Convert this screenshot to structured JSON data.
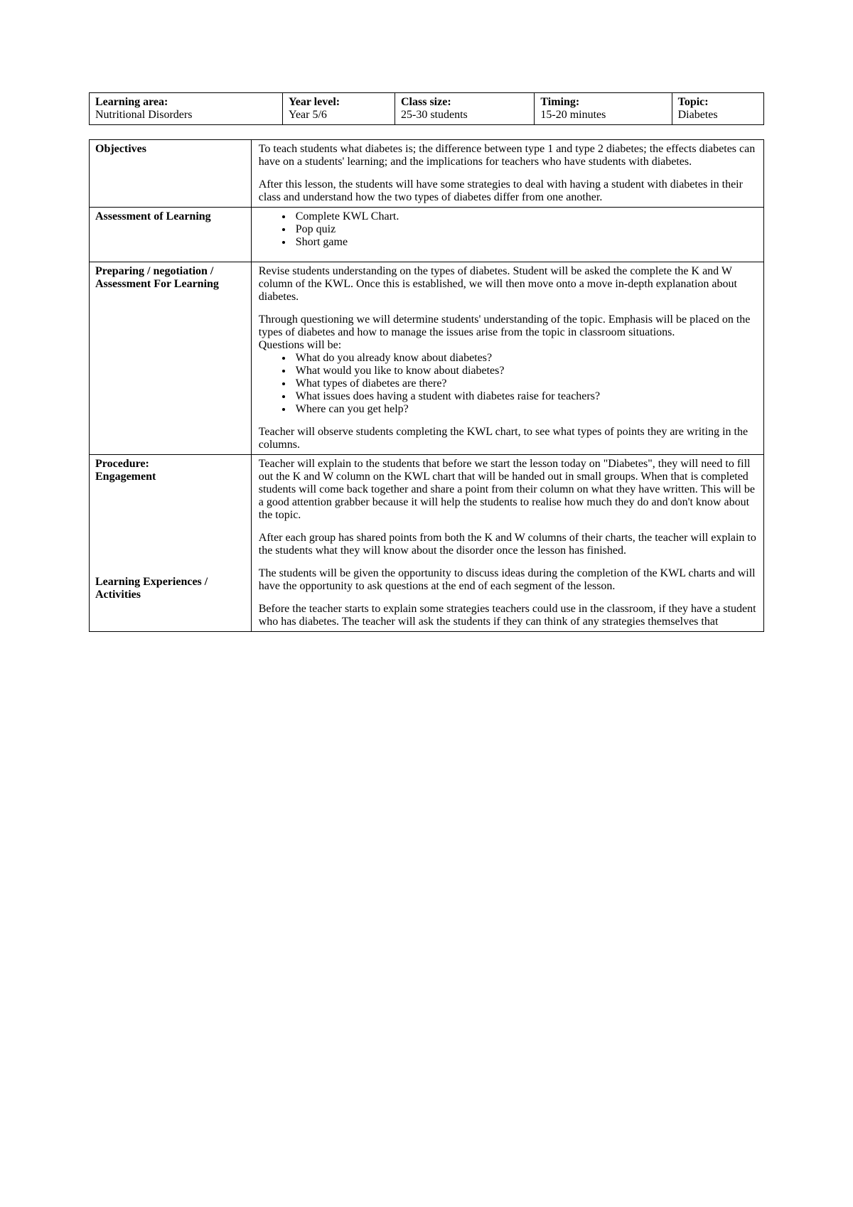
{
  "header": {
    "learning_area": {
      "label": "Learning area:",
      "value": "Nutritional Disorders"
    },
    "year_level": {
      "label": "Year level:",
      "value": "Year 5/6"
    },
    "class_size": {
      "label": "Class size:",
      "value": "25-30 students"
    },
    "timing": {
      "label": "Timing:",
      "value": "15-20 minutes"
    },
    "topic": {
      "label": "Topic:",
      "value": "Diabetes"
    }
  },
  "rows": {
    "objectives": {
      "label": "Objectives",
      "p1": "To teach students what diabetes is; the difference between type 1 and type 2 diabetes; the effects diabetes can have on a students' learning; and the implications for teachers who have students with diabetes.",
      "p2": "After this lesson, the students will have some strategies to deal with having a student with diabetes in their class and understand how the two types of diabetes differ from one another."
    },
    "assessment_of_learning": {
      "label": "Assessment of Learning",
      "items": {
        "0": "Complete KWL Chart.",
        "1": "Pop quiz",
        "2": "Short game"
      }
    },
    "preparing": {
      "label": "Preparing / negotiation / Assessment For Learning",
      "p1": "Revise students understanding on the types of diabetes. Student will be asked the complete the K and W column of the KWL. Once this is established, we will then move onto a move in-depth explanation about diabetes.",
      "p2": "Through questioning we will determine students' understanding of the topic. Emphasis will be placed on the types of diabetes and how to manage the issues arise from the topic in classroom situations.",
      "p3": "Questions will be:",
      "questions": {
        "0": "What do you already know about diabetes?",
        "1": "What would you like to know about diabetes?",
        "2": "What types of diabetes are there?",
        "3": "What issues does having a student with diabetes raise for teachers?",
        "4": "Where can you get help?"
      },
      "p4": "Teacher will observe students completing the KWL chart, to see what types of points they are writing in the columns."
    },
    "procedure": {
      "label1": "Procedure:",
      "label2": "Engagement",
      "label3": "Learning Experiences / Activities",
      "p1": "Teacher will explain to the students that before we start the lesson today on \"Diabetes\", they will need to fill out the K and W column on the KWL chart that will be handed out in small groups. When that is completed students will come back together and share a point from their column on what they have written.  This will be a good attention grabber because it will help the students to realise how much they do and don't know about the topic.",
      "p2": "After each group has shared points from both the K and W columns of their charts, the teacher will explain to the students what they will know about the disorder once the lesson has finished.",
      "p3": "The students will be given the opportunity to discuss ideas during the completion of the KWL charts and will have the opportunity to ask questions at the end of each segment of the lesson.",
      "p4": "Before the teacher starts to explain some strategies teachers could use in the classroom, if they have a student who has diabetes. The teacher will ask the students if they can think of any strategies themselves that"
    }
  }
}
